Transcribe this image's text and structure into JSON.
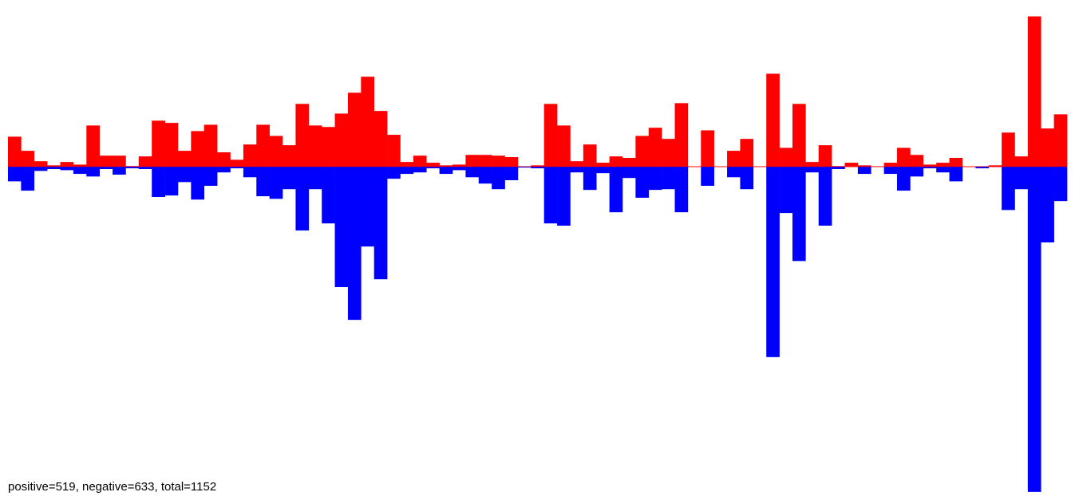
{
  "chart_data": {
    "type": "bar",
    "annotation": "positive=519, negative=633, total=1152",
    "ylim": [
      -88.4,
      44.8
    ],
    "categories_count": 81,
    "series": [
      {
        "color": "#ff0000",
        "values": [
          8.1,
          4.3,
          1.5,
          0.4,
          1.3,
          0.6,
          11.1,
          3.0,
          3.0,
          0.2,
          2.8,
          12.4,
          11.8,
          4.3,
          9.6,
          11.3,
          3.9,
          1.9,
          6.0,
          11.3,
          8.3,
          5.8,
          16.9,
          11.1,
          10.7,
          14.3,
          19.9,
          24.2,
          15.0,
          8.6,
          1.3,
          3.0,
          1.1,
          0.4,
          0.6,
          3.2,
          3.2,
          3.0,
          2.6,
          0,
          0.4,
          16.9,
          11.1,
          1.5,
          6.0,
          1.1,
          2.8,
          2.4,
          8.3,
          10.5,
          7.5,
          17.1,
          0,
          9.8,
          0,
          4.3,
          7.5,
          0,
          25.0,
          5.1,
          16.9,
          1.3,
          5.8,
          0.2,
          1.1,
          0.4,
          0,
          1.1,
          5.1,
          3.2,
          0.6,
          1.1,
          2.4,
          0,
          0,
          0.4,
          9.2,
          2.8,
          40.4,
          10.3,
          14.1
        ]
      },
      {
        "color": "#0000ff",
        "values": [
          -3.9,
          -6.4,
          -1.1,
          -0.6,
          -0.9,
          -1.9,
          -2.6,
          -0.6,
          -2.1,
          -0.4,
          -0.6,
          -8.1,
          -7.7,
          -4.1,
          -8.8,
          -5.1,
          -1.5,
          -0.4,
          -2.8,
          -7.9,
          -8.6,
          -6.0,
          -17.1,
          -6.0,
          -15.2,
          -32.3,
          -41.1,
          -21.4,
          -30.2,
          -3.2,
          -1.9,
          -1.5,
          -0.4,
          -1.9,
          -0.9,
          -2.8,
          -4.5,
          -6.0,
          -3.6,
          -0.2,
          -0.4,
          -15.2,
          -15.8,
          -1.5,
          -6.2,
          -1.7,
          -12.2,
          -3.0,
          -8.3,
          -6.2,
          -6.0,
          -12.2,
          0,
          -5.1,
          0,
          -2.8,
          -6.0,
          0,
          -51.1,
          -12.4,
          -25.3,
          -1.5,
          -15.8,
          -0.6,
          0,
          -1.9,
          0,
          -1.9,
          -6.4,
          -2.6,
          -0.4,
          -1.5,
          -3.9,
          0,
          -0.4,
          0,
          -11.6,
          -6.0,
          -87.3,
          -20.3,
          -9.2
        ]
      }
    ]
  }
}
